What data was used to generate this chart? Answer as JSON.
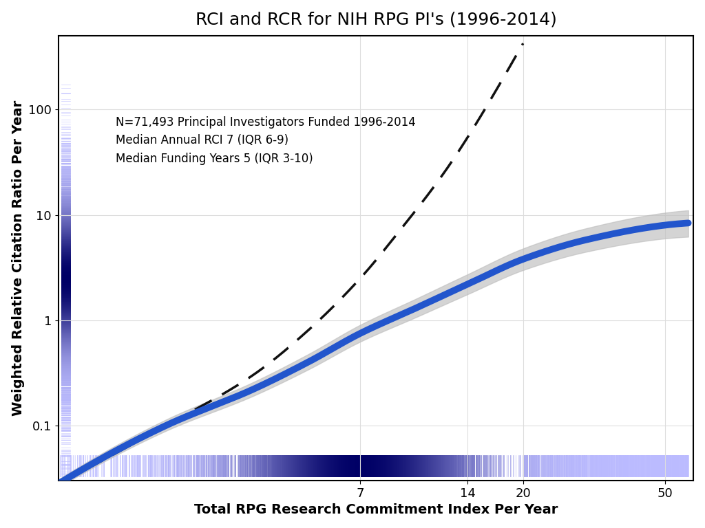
{
  "title": "RCI and RCR for NIH RPG PI's (1996-2014)",
  "xlabel": "Total RPG Research Commitment Index Per Year",
  "ylabel": "Weighted Relative Citation Ratio Per Year",
  "annotation_lines": [
    "N=71,493 Principal Investigators Funded 1996-2014",
    "Median Annual RCI 7 (IQR 6-9)",
    "Median Funding Years 5 (IQR 3-10)"
  ],
  "xtick_vals": [
    7,
    14,
    20,
    50
  ],
  "xtick_labels": [
    "7",
    "14",
    "20",
    "50"
  ],
  "ytick_vals": [
    0.1,
    1,
    10,
    100
  ],
  "ytick_labels": [
    "0.1",
    "1",
    "10",
    "100"
  ],
  "xlim_log": [
    1.0,
    60
  ],
  "ylim_log": [
    0.03,
    500
  ],
  "spline_color": "#2255CC",
  "spline_lw": 7,
  "ci_color": "#BEBEBE",
  "ci_alpha": 0.65,
  "dashed_color": "#111111",
  "dashed_lw": 2.5,
  "rug_color_dark": "#000066",
  "rug_color_light": "#BBBBFF",
  "bg_color": "#FFFFFF",
  "title_fontsize": 18,
  "label_fontsize": 14,
  "tick_fontsize": 13,
  "annot_fontsize": 12,
  "spline_knots_x": [
    1.0,
    2.0,
    3.5,
    5.0,
    7.0,
    10.0,
    14.0,
    20.0,
    30.0,
    50.0
  ],
  "spline_knots_y": [
    0.028,
    0.1,
    0.22,
    0.4,
    0.75,
    1.3,
    2.2,
    3.8,
    5.8,
    8.0
  ],
  "dashed_knots_x": [
    1.0,
    2.0,
    3.5,
    5.0,
    7.0,
    9.0,
    12.0,
    15.0
  ],
  "dashed_knots_y": [
    0.028,
    0.1,
    0.3,
    0.8,
    2.5,
    7.0,
    25.0,
    80.0
  ]
}
